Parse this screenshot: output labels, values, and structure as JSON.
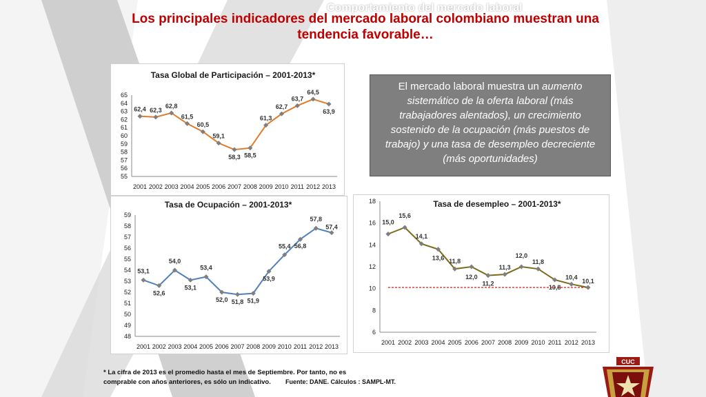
{
  "slide": {
    "faded_title": "Comportamiento del mercado laboral",
    "title": "Los principales indicadores del mercado laboral colombiano muestran una tendencia favorable…",
    "info_prefix": "El mercado laboral muestra un ",
    "info_em1": "aumento sistemático de la oferta laboral (más trabajadores alentados), un crecimiento sostenido de la ocupación (más puestos de trabajo) y una tasa de desempleo decreciente (más oportunidades)",
    "footnote_line1": "* La cifra de 2013 es el  promedio hasta el mes de Septiembre. Por tanto, no es",
    "footnote_line2": "comprable con años anteriores, es sólo un indicativo.",
    "source": "Fuente: DANE. Cálculos : SAMPL-MT.",
    "logo_text": "CUC"
  },
  "colors": {
    "title": "#c00000",
    "tgp_line": "#e07b2a",
    "to_line": "#4f81bd",
    "td_line": "#7a6a1a",
    "ref_line": "#d00000"
  },
  "chart_data": [
    {
      "type": "line",
      "title": "Tasa Global de Participación – 2001-2013*",
      "categories": [
        "2001",
        "2002",
        "2003",
        "2004",
        "2005",
        "2006",
        "2007",
        "2008",
        "2009",
        "2010",
        "2011",
        "2012",
        "2013"
      ],
      "values": [
        62.4,
        62.3,
        62.8,
        61.5,
        60.5,
        59.1,
        58.3,
        58.5,
        61.3,
        62.7,
        63.7,
        64.5,
        63.9
      ],
      "labels": [
        "62,4",
        "62,3",
        "62,8",
        "61,5",
        "60,5",
        "59,1",
        "58,3",
        "58,5",
        "61,3",
        "62,7",
        "63,7",
        "64,5",
        "63,9"
      ],
      "ylim": [
        55,
        65
      ],
      "yticks": [
        "55",
        "56",
        "57",
        "58",
        "59",
        "60",
        "61",
        "62",
        "63",
        "64",
        "65"
      ],
      "grid": false
    },
    {
      "type": "line",
      "title": "Tasa de Ocupación – 2001-2013*",
      "categories": [
        "2001",
        "2002",
        "2003",
        "2004",
        "2005",
        "2006",
        "2007",
        "2008",
        "2009",
        "2010",
        "2011",
        "2012",
        "2013"
      ],
      "values": [
        53.1,
        52.6,
        54.0,
        53.1,
        53.4,
        52.0,
        51.8,
        51.9,
        53.9,
        55.4,
        56.8,
        57.8,
        57.4
      ],
      "labels": [
        "53,1",
        "52,6",
        "54,0",
        "53,1",
        "53,4",
        "52,0",
        "51,8",
        "51,9",
        "53,9",
        "55,4",
        "56,8",
        "57,8",
        "57,4"
      ],
      "ylim": [
        48,
        59
      ],
      "yticks": [
        "48",
        "49",
        "50",
        "51",
        "52",
        "53",
        "54",
        "55",
        "56",
        "57",
        "58",
        "59"
      ],
      "grid": false
    },
    {
      "type": "line",
      "title": "Tasa de desempleo – 2001-2013*",
      "categories": [
        "2001",
        "2002",
        "2003",
        "2004",
        "2005",
        "2006",
        "2007",
        "2008",
        "2009",
        "2010",
        "2011",
        "2012",
        "2013"
      ],
      "values": [
        15.0,
        15.6,
        14.1,
        13.6,
        11.8,
        12.0,
        11.2,
        11.3,
        12.0,
        11.8,
        10.8,
        10.4,
        10.1
      ],
      "labels": [
        "15,0",
        "15,6",
        "14,1",
        "13,6",
        "11,8",
        "12,0",
        "11,2",
        "11,3",
        "12,0",
        "11,8",
        "10,8",
        "10,4",
        "10,1"
      ],
      "ylim": [
        6,
        18
      ],
      "yticks": [
        "6",
        "8",
        "10",
        "12",
        "14",
        "16",
        "18"
      ],
      "reference_y": 10.1,
      "grid": false
    }
  ]
}
